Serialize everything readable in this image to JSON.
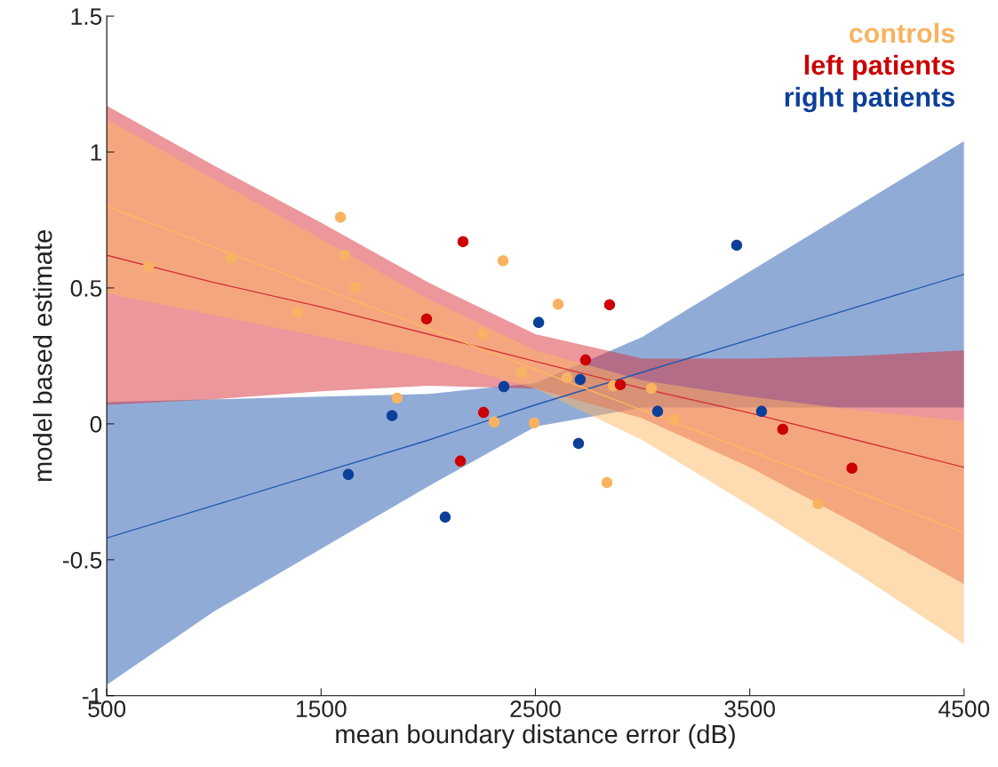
{
  "chart_data": {
    "type": "scatter",
    "xlabel": "mean boundary distance error (dB)",
    "ylabel": "model based estimate",
    "xlim": [
      500,
      4500
    ],
    "xticks": [
      500,
      1500,
      2500,
      3500,
      4500
    ],
    "ylim": [
      -1,
      1.5
    ],
    "yticks": [
      -1,
      -0.5,
      0,
      0.5,
      1,
      1.5
    ],
    "grid": false,
    "legend": "top right",
    "series": [
      {
        "type": "line",
        "marker": "none",
        "color": "#2358b0",
        "x": [
          500,
          1000,
          1500,
          2000,
          2500,
          3000,
          3500,
          4000,
          4500
        ],
        "values": [
          -0.42,
          -0.3,
          -0.18,
          -0.06,
          0.07,
          0.19,
          0.31,
          0.43,
          0.55
        ],
        "lower": [
          -0.96,
          -0.69,
          -0.46,
          -0.23,
          -0.01,
          0.06,
          0.06,
          0.06,
          0.06
        ],
        "upper": [
          0.08,
          0.09,
          0.1,
          0.11,
          0.15,
          0.32,
          0.56,
          0.8,
          1.04
        ]
      },
      {
        "type": "line",
        "marker": "none",
        "color": "#d73038",
        "x": [
          500,
          1000,
          1500,
          2000,
          2500,
          3000,
          3500,
          4000,
          4500
        ],
        "values": [
          0.62,
          0.52,
          0.43,
          0.33,
          0.23,
          0.13,
          0.04,
          -0.06,
          -0.16
        ],
        "lower": [
          0.07,
          0.09,
          0.12,
          0.14,
          0.13,
          0.02,
          -0.16,
          -0.37,
          -0.59
        ],
        "upper": [
          1.17,
          0.95,
          0.74,
          0.52,
          0.33,
          0.24,
          0.24,
          0.25,
          0.27
        ]
      },
      {
        "type": "line",
        "marker": "none",
        "color": "#fdb863",
        "x": [
          500,
          1000,
          1500,
          2000,
          2500,
          3000,
          3500,
          4000,
          4500
        ],
        "values": [
          0.8,
          0.65,
          0.5,
          0.35,
          0.2,
          0.05,
          -0.1,
          -0.25,
          -0.4
        ],
        "lower": [
          0.48,
          0.4,
          0.32,
          0.24,
          0.13,
          -0.06,
          -0.3,
          -0.55,
          -0.81
        ],
        "upper": [
          1.12,
          0.9,
          0.68,
          0.46,
          0.27,
          0.16,
          0.1,
          0.05,
          0.01
        ]
      },
      {
        "marker": "circle",
        "name": "controls",
        "color": "#f8b360",
        "x": [
          695,
          1080,
          1590,
          1611,
          1661,
          1391,
          1855,
          2253,
          2349,
          2307,
          2436,
          2494,
          2606,
          2647,
          2834,
          2863,
          3041,
          3145,
          3820
        ],
        "values": [
          0.58,
          0.61,
          0.76,
          0.62,
          0.5,
          0.41,
          0.095,
          0.33,
          0.6,
          0.007,
          0.19,
          0.003,
          0.44,
          0.17,
          -0.216,
          0.14,
          0.13,
          0.016,
          -0.294
        ]
      },
      {
        "marker": "circle",
        "name": "left patients",
        "color": "#cc0000",
        "x": [
          1992,
          2162,
          2258,
          2150,
          2734,
          2846,
          2896,
          3654,
          3977
        ],
        "values": [
          0.386,
          0.67,
          0.042,
          -0.137,
          0.235,
          0.438,
          0.144,
          -0.02,
          -0.163
        ]
      },
      {
        "marker": "circle",
        "name": "right patients",
        "color": "#0b3f99",
        "x": [
          1627,
          1831,
          2079,
          2353,
          2515,
          2701,
          2709,
          3070,
          3439,
          3555
        ],
        "values": [
          -0.186,
          0.03,
          -0.343,
          0.137,
          0.373,
          -0.072,
          0.163,
          0.046,
          0.657,
          0.046
        ]
      }
    ]
  }
}
